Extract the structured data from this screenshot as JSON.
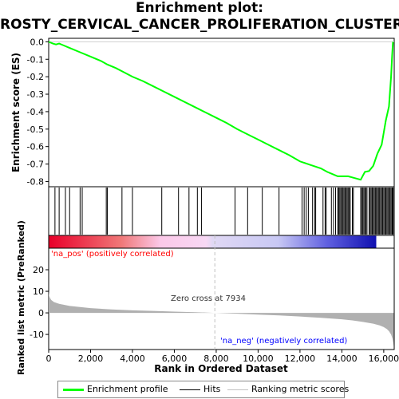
{
  "title_line1": "Enrichment plot:",
  "title_line2": "ROSTY_CERVICAL_CANCER_PROLIFERATION_CLUSTER",
  "colors": {
    "es_line": "#00ff00",
    "hits": "#000000",
    "metric_fill": "#b0b0b0",
    "pos_label": "#ff0000",
    "neg_label": "#0000ff",
    "zero_line": "#c0c0c0"
  },
  "chart_data": [
    {
      "type": "line",
      "name": "enrichment-profile",
      "ylabel": "Enrichment score (ES)",
      "xlim": [
        0,
        16500
      ],
      "ylim": [
        -0.83,
        0.02
      ],
      "yticks": [
        0.0,
        -0.1,
        -0.2,
        -0.3,
        -0.4,
        -0.5,
        -0.6,
        -0.7,
        -0.8
      ],
      "ytick_labels": [
        "0.0",
        "-0.1",
        "-0.2",
        "-0.3",
        "-0.4",
        "-0.5",
        "-0.6",
        "-0.7",
        "-0.8"
      ],
      "x": [
        0,
        200,
        350,
        500,
        700,
        1000,
        1500,
        2000,
        2500,
        2800,
        3200,
        3600,
        4000,
        4500,
        5000,
        5500,
        6000,
        6500,
        7000,
        7500,
        8000,
        8500,
        9000,
        9500,
        10000,
        10500,
        11000,
        11500,
        12000,
        12500,
        13000,
        13300,
        13600,
        13800,
        14000,
        14300,
        14600,
        14900,
        15100,
        15300,
        15500,
        15700,
        15900,
        16100,
        16250,
        16350,
        16400,
        16440
      ],
      "y": [
        0.0,
        -0.01,
        -0.015,
        -0.01,
        -0.02,
        -0.035,
        -0.06,
        -0.085,
        -0.11,
        -0.13,
        -0.15,
        -0.175,
        -0.2,
        -0.225,
        -0.255,
        -0.285,
        -0.315,
        -0.345,
        -0.375,
        -0.405,
        -0.435,
        -0.465,
        -0.5,
        -0.53,
        -0.56,
        -0.59,
        -0.62,
        -0.65,
        -0.685,
        -0.705,
        -0.725,
        -0.745,
        -0.76,
        -0.77,
        -0.77,
        -0.77,
        -0.78,
        -0.79,
        -0.745,
        -0.74,
        -0.71,
        -0.64,
        -0.59,
        -0.45,
        -0.37,
        -0.2,
        -0.08,
        0.0
      ]
    },
    {
      "type": "scatter",
      "name": "hits",
      "x": [
        300,
        500,
        800,
        1000,
        1500,
        1600,
        2750,
        2800,
        3500,
        4000,
        5400,
        6200,
        6700,
        7100,
        7300,
        8900,
        9500,
        10200,
        11000,
        12100,
        12200,
        12300,
        12400,
        12600,
        12700,
        12750,
        13100,
        13200,
        13250,
        13500,
        13600,
        13700,
        13800,
        13850,
        13900,
        13950,
        14000,
        14050,
        14100,
        14150,
        14200,
        14250,
        14300,
        14350,
        14400,
        14500,
        14550,
        14900,
        14950,
        15000,
        15050,
        15100,
        15150,
        15200,
        15300,
        15350,
        15400,
        15450,
        15500,
        15550,
        15600,
        15650,
        15700,
        15750,
        15800,
        15850,
        15900,
        15950,
        16000,
        16050,
        16100,
        16150,
        16200,
        16250,
        16300,
        16350,
        16400,
        16420,
        16450
      ]
    },
    {
      "type": "area",
      "name": "ranked-list-metric",
      "ylabel": "Ranked list metric (PreRanked)",
      "xlabel": "Rank in Ordered Dataset",
      "xlim": [
        0,
        16500
      ],
      "ylim": [
        -17,
        30
      ],
      "yticks": [
        20,
        10,
        0,
        -10
      ],
      "ytick_labels": [
        "20",
        "10",
        "0",
        "-10"
      ],
      "xticks": [
        0,
        2000,
        4000,
        6000,
        8000,
        10000,
        12000,
        14000,
        16000
      ],
      "xtick_labels": [
        "0",
        "2,000",
        "4,000",
        "6,000",
        "8,000",
        "10,000",
        "12,000",
        "14,000",
        "16,000"
      ],
      "x": [
        0,
        20,
        60,
        120,
        250,
        500,
        1000,
        2000,
        3000,
        4000,
        5000,
        6000,
        7000,
        7934,
        9000,
        10000,
        11000,
        12000,
        13000,
        14000,
        14500,
        15000,
        15500,
        15800,
        16000,
        16150,
        16250,
        16350,
        16420,
        16460,
        16480
      ],
      "y": [
        10,
        8,
        7,
        6,
        5,
        4.2,
        3.2,
        2.2,
        1.6,
        1.2,
        0.9,
        0.6,
        0.3,
        0,
        -0.4,
        -0.8,
        -1.2,
        -1.7,
        -2.3,
        -3.0,
        -3.5,
        -4.2,
        -5.0,
        -5.8,
        -6.6,
        -7.5,
        -8.5,
        -10,
        -12,
        -14,
        -15.5
      ]
    }
  ],
  "labels": {
    "pos": "'na_pos' (positively correlated)",
    "neg": "'na_neg' (negatively correlated)",
    "zero_cross": "Zero cross at 7934"
  },
  "legend": {
    "enrichment": "Enrichment profile",
    "hits": "Hits",
    "metric": "Ranking metric scores"
  }
}
